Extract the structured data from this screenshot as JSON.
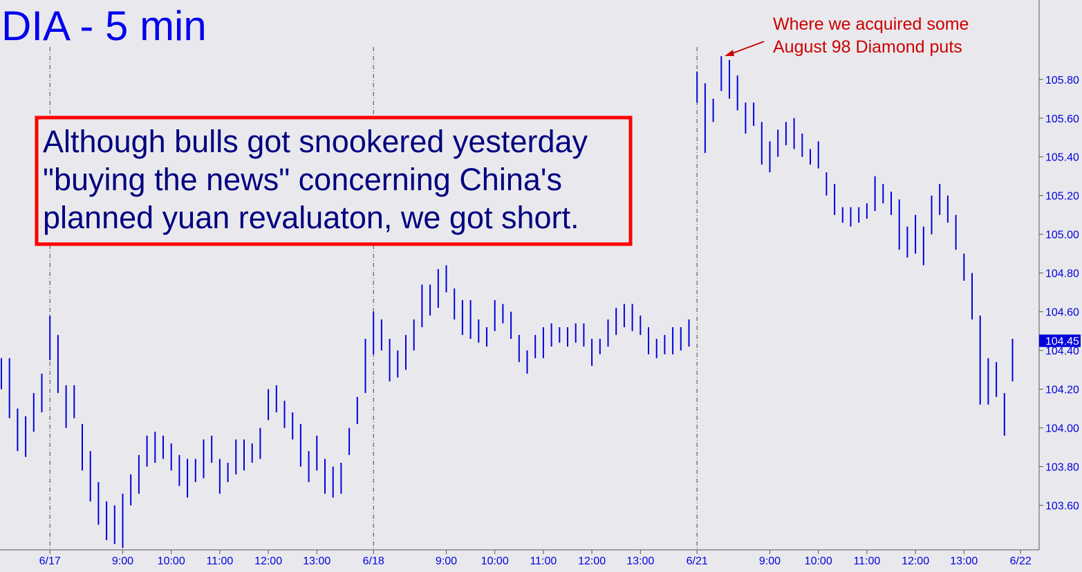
{
  "chart_data": {
    "type": "ohlc",
    "title": "DIA - 5 min",
    "annotation": [
      "Where we acquired some",
      "August 98 Diamond puts"
    ],
    "box_text": [
      "Although bulls got snookered yesterday",
      "\"buying the news\" concerning China's",
      "planned yuan revaluaton, we got short."
    ],
    "color": "#0000dd",
    "categories": [
      null,
      null,
      null,
      null,
      null,
      null,
      "6/17",
      null,
      null,
      null,
      null,
      null,
      null,
      null,
      null,
      "9:00",
      null,
      null,
      null,
      null,
      null,
      "10:00",
      null,
      null,
      null,
      null,
      null,
      "11:00",
      null,
      null,
      null,
      null,
      null,
      "12:00",
      null,
      null,
      null,
      null,
      null,
      "13:00",
      null,
      null,
      null,
      null,
      null,
      null,
      "6/18",
      null,
      null,
      null,
      null,
      null,
      null,
      null,
      null,
      "9:00",
      null,
      null,
      null,
      null,
      null,
      "10:00",
      null,
      null,
      null,
      null,
      null,
      "11:00",
      null,
      null,
      null,
      null,
      null,
      "12:00",
      null,
      null,
      null,
      null,
      null,
      "13:00",
      null,
      null,
      null,
      null,
      null,
      null,
      "6/21",
      null,
      null,
      null,
      null,
      null,
      null,
      null,
      null,
      "9:00",
      null,
      null,
      null,
      null,
      null,
      "10:00",
      null,
      null,
      null,
      null,
      null,
      "11:00",
      null,
      null,
      null,
      null,
      null,
      "12:00",
      null,
      null,
      null,
      null,
      null,
      "13:00",
      null,
      null,
      null,
      null,
      null,
      null,
      "6/22"
    ],
    "high": [
      104.36,
      104.36,
      104.1,
      104.06,
      104.18,
      104.28,
      104.58,
      104.48,
      104.22,
      104.22,
      104.02,
      103.88,
      103.72,
      103.62,
      103.6,
      103.66,
      103.76,
      103.86,
      103.96,
      103.98,
      103.96,
      103.92,
      103.86,
      103.84,
      103.84,
      103.94,
      103.96,
      103.84,
      103.82,
      103.94,
      103.94,
      103.92,
      104.0,
      104.2,
      104.22,
      104.14,
      104.08,
      104.02,
      103.88,
      103.96,
      103.84,
      103.8,
      103.82,
      104.0,
      104.16,
      104.46,
      104.6,
      104.56,
      104.46,
      104.4,
      104.48,
      104.56,
      104.74,
      104.74,
      104.82,
      104.84,
      104.72,
      104.66,
      104.66,
      104.56,
      104.52,
      104.66,
      104.64,
      104.6,
      104.48,
      104.4,
      104.48,
      104.52,
      104.54,
      104.52,
      104.52,
      104.54,
      104.54,
      104.46,
      104.46,
      104.56,
      104.62,
      104.64,
      104.64,
      104.58,
      104.52,
      104.46,
      104.48,
      104.52,
      104.52,
      104.56,
      105.84,
      105.78,
      105.7,
      105.92,
      105.9,
      105.82,
      105.68,
      105.68,
      105.58,
      105.48,
      105.54,
      105.58,
      105.6,
      105.52,
      105.44,
      105.48,
      105.32,
      105.26,
      105.14,
      105.14,
      105.14,
      105.16,
      105.3,
      105.26,
      105.22,
      105.18,
      105.04,
      105.1,
      105.04,
      105.2,
      105.26,
      105.2,
      105.1,
      104.9,
      104.8,
      104.58,
      104.36,
      104.34,
      104.18,
      104.46,
      null
    ],
    "low": [
      104.2,
      104.05,
      103.88,
      103.85,
      103.98,
      104.08,
      104.35,
      104.18,
      104.0,
      104.05,
      103.78,
      103.62,
      103.5,
      103.42,
      103.4,
      103.38,
      103.6,
      103.66,
      103.8,
      103.82,
      103.84,
      103.78,
      103.7,
      103.64,
      103.72,
      103.74,
      103.82,
      103.66,
      103.72,
      103.76,
      103.78,
      103.82,
      103.84,
      104.04,
      104.08,
      104.0,
      103.94,
      103.8,
      103.72,
      103.78,
      103.66,
      103.64,
      103.66,
      103.86,
      104.02,
      104.18,
      104.38,
      104.4,
      104.24,
      104.26,
      104.3,
      104.4,
      104.52,
      104.58,
      104.62,
      104.7,
      104.56,
      104.48,
      104.46,
      104.44,
      104.42,
      104.5,
      104.54,
      104.46,
      104.34,
      104.28,
      104.36,
      104.36,
      104.42,
      104.44,
      104.42,
      104.44,
      104.42,
      104.32,
      104.38,
      104.42,
      104.48,
      104.52,
      104.5,
      104.48,
      104.38,
      104.36,
      104.38,
      104.38,
      104.4,
      104.42,
      105.68,
      105.42,
      105.58,
      105.74,
      105.7,
      105.64,
      105.52,
      105.56,
      105.36,
      105.32,
      105.4,
      105.46,
      105.44,
      105.4,
      105.36,
      105.34,
      105.2,
      105.1,
      105.06,
      105.04,
      105.06,
      105.08,
      105.12,
      105.16,
      105.1,
      104.92,
      104.88,
      104.9,
      104.84,
      105.0,
      105.1,
      105.06,
      104.92,
      104.76,
      104.56,
      104.12,
      104.12,
      104.16,
      103.96,
      104.24,
      null
    ],
    "last_price": 104.45,
    "ylim": [
      103.37,
      106.21
    ],
    "yticks": [
      {
        "value": 103.6,
        "label": "103.60"
      },
      {
        "value": 103.8,
        "label": "103.80"
      },
      {
        "value": 104.0,
        "label": "104.00"
      },
      {
        "value": 104.2,
        "label": "104.20"
      },
      {
        "value": 104.4,
        "label": "104.40"
      },
      {
        "value": 104.6,
        "label": "104.60"
      },
      {
        "value": 104.8,
        "label": "104.80"
      },
      {
        "value": 105.0,
        "label": "105.00"
      },
      {
        "value": 105.2,
        "label": "105.20"
      },
      {
        "value": 105.4,
        "label": "105.40"
      },
      {
        "value": 105.6,
        "label": "105.60"
      },
      {
        "value": 105.8,
        "label": "105.80"
      }
    ]
  }
}
